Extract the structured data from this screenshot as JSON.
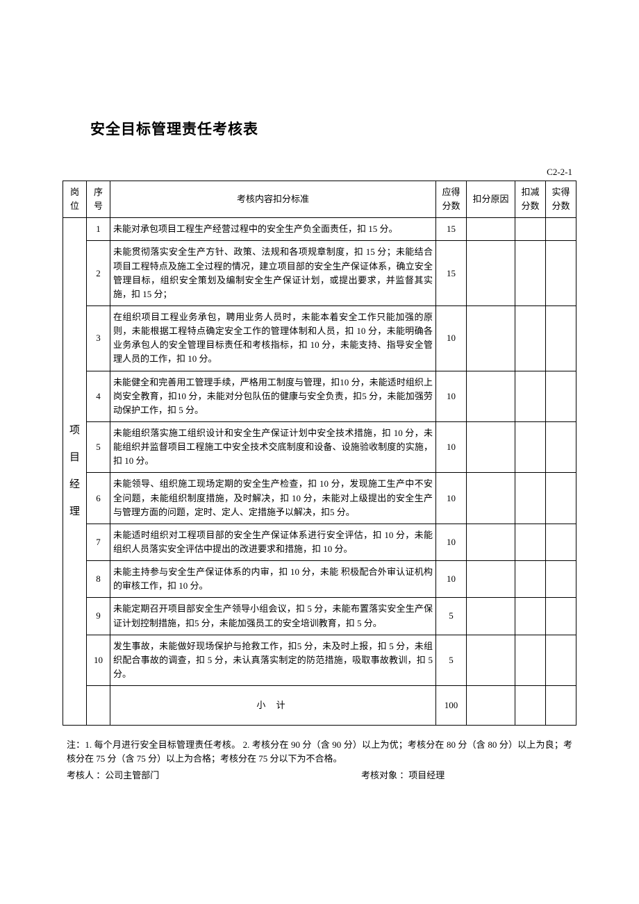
{
  "title": "安全目标管理责任考核表",
  "form_code": "C2-2-1",
  "headers": {
    "position": "岗位",
    "seq": "序号",
    "content": "考核内容扣分标准",
    "score": "应得分数",
    "reason": "扣分原因",
    "deduct": "扣减分数",
    "actual": "实得分数"
  },
  "position_label": "项目经理",
  "rows": [
    {
      "seq": "1",
      "content": "未能对承包项目工程生产经营过程中的安全生产负全面责任，扣 15 分。",
      "score": "15"
    },
    {
      "seq": "2",
      "content": "未能贯彻落实安全生产方针、政策、法规和各项规章制度，扣 15 分；未能结合项目工程特点及施工全过程的情况，建立项目部的安全生产保证体系，确立安全管理目标，组织安全策划及编制安全生产保证计划，或提出要求，并监督其实施，扣 15 分；",
      "score": "15"
    },
    {
      "seq": "3",
      "content": "在组织项目工程业务承包，聘用业务人员时，未能本着安全工作只能加强的原则，未能根据工程特点确定安全工作的管理体制和人员，扣 10 分，未能明确各业务承包人的安全管理目标责任和考核指标，扣 10 分，未能支持、指导安全管理人员的工作，扣 10 分。",
      "score": "10"
    },
    {
      "seq": "4",
      "content": "未能健全和完善用工管理手续，严格用工制度与管理，扣10 分，未能适时组织上岗安全教育，扣10 分，未能对分包队伍的健康与安全负责，扣5 分，未能加强劳动保护工作，扣 5 分。",
      "score": "10"
    },
    {
      "seq": "5",
      "content": "未能组织落实施工组织设计和安全生产保证计划中安全技术措施，扣 10 分，未能组织并监督项目工程施工中安全技术交底制度和设备、设施验收制度的实施，扣 10 分。",
      "score": "10"
    },
    {
      "seq": "6",
      "content": "未能领导、组织施工现场定期的安全生产检查，扣 10 分，发现施工生产中不安全问题，未能组织制度措施，及时解决，扣 10 分，未能对上级提出的安全生产与管理方面的问题，定时、定人、定措施予以解决，扣5 分。",
      "score": "10"
    },
    {
      "seq": "7",
      "content": "未能适时组织对工程项目部的安全生产保证体系进行安全评估，扣 10 分，未能组织人员落实安全评估中提出的改进要求和措施，扣 10 分。",
      "score": "10"
    },
    {
      "seq": "8",
      "content": "未能主持参与安全生产保证体系的内审，扣 10 分，未能 积极配合外审认证机构的审核工作，扣 10 分。",
      "score": "10"
    },
    {
      "seq": "9",
      "content": "未能定期召开项目部安全生产领导小组会议，扣 5 分，未能布置落实安全生产保证计划控制措施，扣5 分，未能加强员工的安全培训教育，扣 5 分。",
      "score": "5"
    },
    {
      "seq": "10",
      "content": "发生事故，未能做好现场保护与抢救工作，扣5 分，未及时上报，扣 5 分，未组织配合事故的调查，扣 5 分，未认真落实制定的防范措施，吸取事故教训，扣 5 分。",
      "score": "5"
    }
  ],
  "subtotal": {
    "label": "小  计",
    "score": "100"
  },
  "notes": "注：1. 每个月进行安全目标管理责任考核。 2. 考核分在 90 分（含 90 分）以上为优；考核分在 80 分（含 80 分）以上为良；考核分在 75 分（含 75 分）以上为合格；考核分在 75 分以下为不合格。",
  "assessor": {
    "label": "考核人 ：",
    "value": "公司主管部门"
  },
  "assessee": {
    "label": "考核对象 ：",
    "value": "项目经理"
  }
}
